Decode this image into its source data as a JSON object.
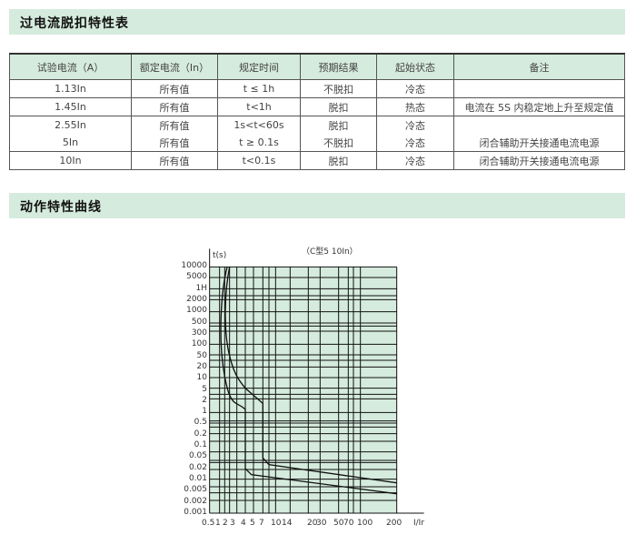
{
  "section1_title": "过电流脱扣特性表",
  "section2_title": "动作特性曲线",
  "table": {
    "headers": [
      "试验电流（A）",
      "额定电流（In）",
      "规定时间",
      "预期结果",
      "起始状态",
      "备注"
    ],
    "rows": [
      [
        "1.13In",
        "所有值",
        "t ≤ 1h",
        "不脱扣",
        "冷态",
        ""
      ],
      [
        "1.45In",
        "所有值",
        "t<1h",
        "脱扣",
        "热态",
        "电流在 5S 内稳定地上升至规定值"
      ],
      [
        "2.55In",
        "所有值",
        "1s<t<60s",
        "脱扣",
        "冷态",
        ""
      ],
      [
        "5In",
        "所有值",
        "t ≥ 0.1s",
        "不脱扣",
        "冷态",
        "闭合辅助开关接通电流电源"
      ],
      [
        "10In",
        "所有值",
        "t<0.1s",
        "脱扣",
        "冷态",
        "闭合辅助开关接通电流电源"
      ]
    ]
  },
  "chart": {
    "subtitle": "（C型5  10In）",
    "ylabel": "t(s)",
    "xlabel": "I/Ir",
    "yticks": [
      "10000",
      "5000",
      "1H",
      "2000",
      "1000",
      "500",
      "300",
      "100",
      "50",
      "20",
      "10",
      "5",
      "2",
      "1",
      "0.5",
      "0.2",
      "0.1",
      "0.05",
      "0.02",
      "0.01",
      "0.005",
      "0.002",
      "0.001"
    ],
    "xticks": [
      "0.5",
      "1",
      "2",
      "3",
      "4",
      "5",
      "7",
      "10",
      "14",
      "20",
      "30",
      "50",
      "70",
      "100",
      "200"
    ],
    "fill": "#d5ebdd"
  }
}
